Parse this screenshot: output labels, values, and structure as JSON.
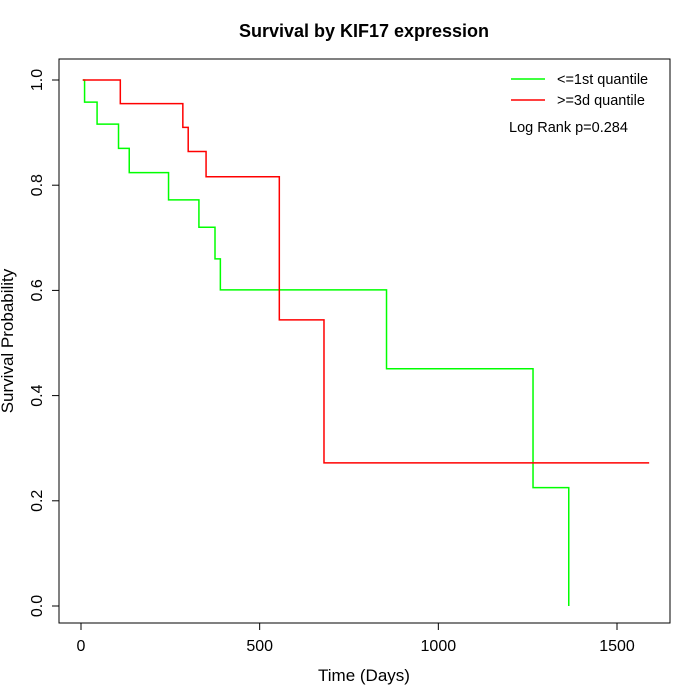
{
  "chart_data": {
    "type": "line",
    "title": "Survival by KIF17 expression",
    "xlabel": "Time (Days)",
    "ylabel": "Survival Probability",
    "xlim": [
      0,
      1600
    ],
    "ylim": [
      0,
      1
    ],
    "x_ticks": [
      0,
      500,
      1000,
      1500
    ],
    "y_ticks": [
      0.0,
      0.2,
      0.4,
      0.6,
      0.8,
      1.0
    ],
    "x_tick_labels": [
      "0",
      "500",
      "1000",
      "1500"
    ],
    "y_tick_labels": [
      "0.0",
      "0.2",
      "0.4",
      "0.6",
      "0.8",
      "1.0"
    ],
    "grid": false,
    "legend_position": "top-right",
    "annotation": "Log Rank p=0.284",
    "series": [
      {
        "name": "<=1st quantile",
        "color": "#00ff00",
        "step": true,
        "x": [
          5,
          10,
          45,
          105,
          135,
          245,
          330,
          375,
          390,
          855,
          1265,
          1365,
          1365
        ],
        "y": [
          1.0,
          0.958,
          0.916,
          0.87,
          0.824,
          0.772,
          0.72,
          0.66,
          0.601,
          0.451,
          0.225,
          0.0,
          0.0
        ]
      },
      {
        "name": ">=3d quantile",
        "color": "#ff0000",
        "step": true,
        "x": [
          5,
          110,
          285,
          300,
          350,
          555,
          680,
          1590
        ],
        "y": [
          1.0,
          0.955,
          0.91,
          0.864,
          0.816,
          0.544,
          0.272,
          0.272
        ]
      }
    ]
  }
}
